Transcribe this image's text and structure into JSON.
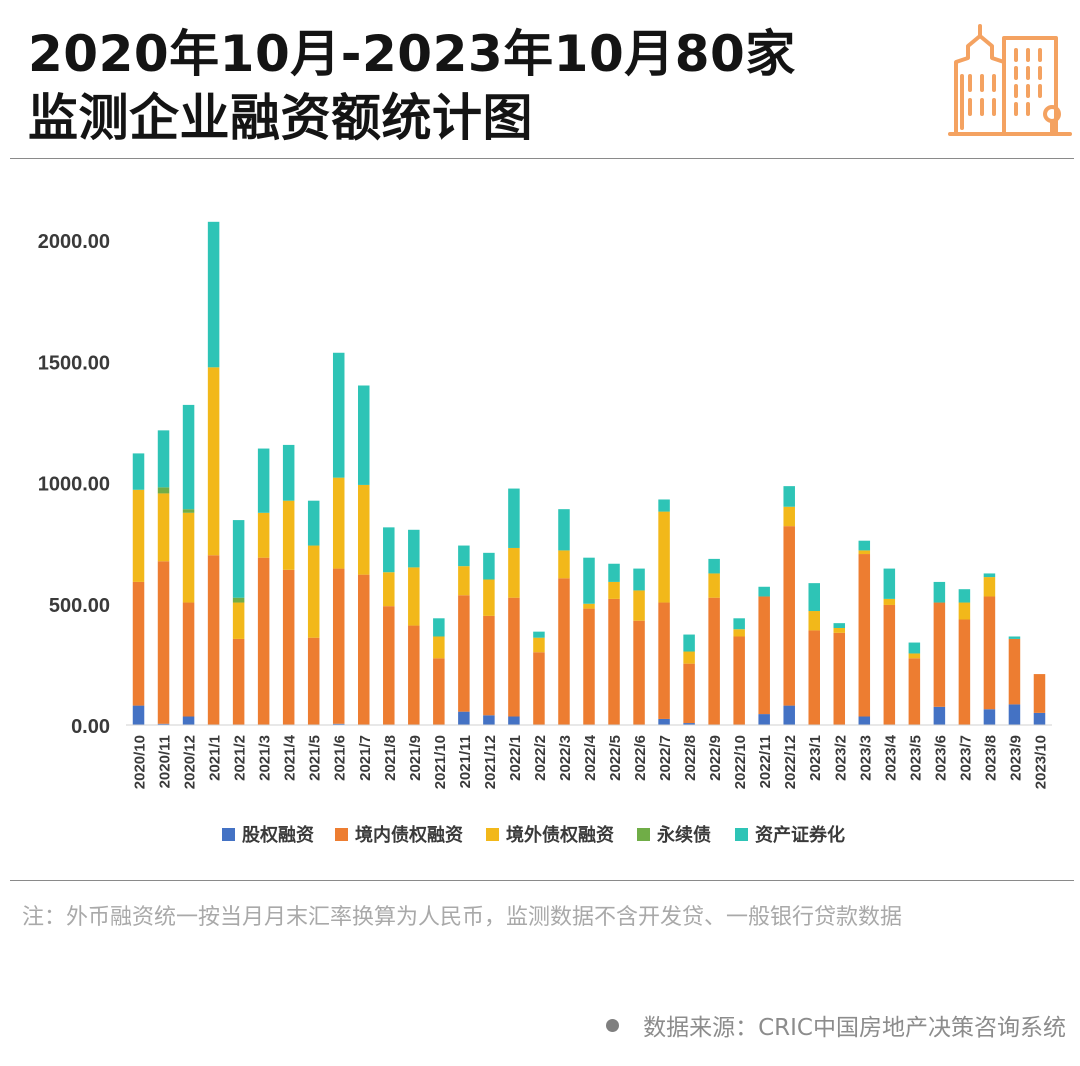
{
  "title": {
    "line1": "2020年10月-2023年10月80家",
    "line2": "监测企业融资额统计图"
  },
  "logo_icon": "building-icon",
  "colors": {
    "equity": "#4472C4",
    "domestic_bond": "#ED7D31",
    "overseas_bond": "#F2B81A",
    "perpetual_bond": "#70AD47",
    "abs": "#2EC4B6",
    "logo": "#F4A261"
  },
  "chart_data": {
    "type": "bar",
    "stacked": true,
    "categories": [
      "2020/10",
      "2020/11",
      "2020/12",
      "2021/1",
      "2021/2",
      "2021/3",
      "2021/4",
      "2021/5",
      "2021/6",
      "2021/7",
      "2021/8",
      "2021/9",
      "2021/10",
      "2021/11",
      "2021/12",
      "2022/1",
      "2022/2",
      "2022/3",
      "2022/4",
      "2022/5",
      "2022/6",
      "2022/7",
      "2022/8",
      "2022/9",
      "2022/10",
      "2022/11",
      "2022/12",
      "2023/1",
      "2023/2",
      "2023/3",
      "2023/4",
      "2023/5",
      "2023/6",
      "2023/7",
      "2023/8",
      "2023/9",
      "2023/10"
    ],
    "series": [
      {
        "name": "股权融资",
        "color": "#4472C4",
        "values": [
          80,
          5,
          35,
          0,
          0,
          0,
          0,
          0,
          5,
          0,
          0,
          0,
          0,
          55,
          40,
          35,
          0,
          0,
          0,
          0,
          0,
          25,
          8,
          0,
          0,
          45,
          80,
          0,
          0,
          35,
          0,
          0,
          75,
          0,
          65,
          85,
          50
        ]
      },
      {
        "name": "境内债权融资",
        "color": "#ED7D31",
        "values": [
          510,
          670,
          470,
          700,
          355,
          690,
          640,
          360,
          640,
          620,
          490,
          410,
          275,
          480,
          410,
          490,
          300,
          605,
          480,
          520,
          430,
          480,
          245,
          525,
          365,
          485,
          740,
          390,
          380,
          670,
          495,
          275,
          430,
          435,
          465,
          270,
          160
        ]
      },
      {
        "name": "境外债权融资",
        "color": "#F2B81A",
        "values": [
          380,
          280,
          370,
          775,
          150,
          185,
          285,
          380,
          375,
          370,
          140,
          240,
          90,
          120,
          150,
          205,
          60,
          115,
          20,
          70,
          125,
          375,
          50,
          100,
          30,
          0,
          80,
          80,
          20,
          15,
          25,
          20,
          0,
          70,
          80,
          0,
          0
        ]
      },
      {
        "name": "永续债",
        "color": "#70AD47",
        "values": [
          0,
          25,
          15,
          0,
          20,
          0,
          0,
          0,
          0,
          0,
          0,
          0,
          0,
          0,
          0,
          0,
          0,
          0,
          0,
          0,
          0,
          0,
          0,
          0,
          0,
          0,
          0,
          0,
          0,
          0,
          0,
          0,
          0,
          0,
          0,
          0,
          0
        ]
      },
      {
        "name": "资产证券化",
        "color": "#2EC4B6",
        "values": [
          150,
          235,
          430,
          600,
          320,
          265,
          230,
          185,
          515,
          410,
          185,
          155,
          75,
          85,
          110,
          245,
          25,
          170,
          190,
          75,
          90,
          50,
          70,
          60,
          45,
          40,
          85,
          115,
          20,
          40,
          125,
          45,
          85,
          55,
          15,
          10,
          0
        ]
      }
    ],
    "y_ticks": [
      "0.00",
      "500.00",
      "1000.00",
      "1500.00",
      "2000.00"
    ],
    "ylim": [
      0,
      2000
    ],
    "legend": [
      "股权融资",
      "境内债权融资",
      "境外债权融资",
      "永续债",
      "资产证券化"
    ],
    "legend_position": "bottom",
    "grid": false
  },
  "footnote": "注：外币融资统一按当月月末汇率换算为人民币，监测数据不含开发贷、一般银行贷款数据",
  "source": "数据来源：CRIC中国房地产决策咨询系统"
}
